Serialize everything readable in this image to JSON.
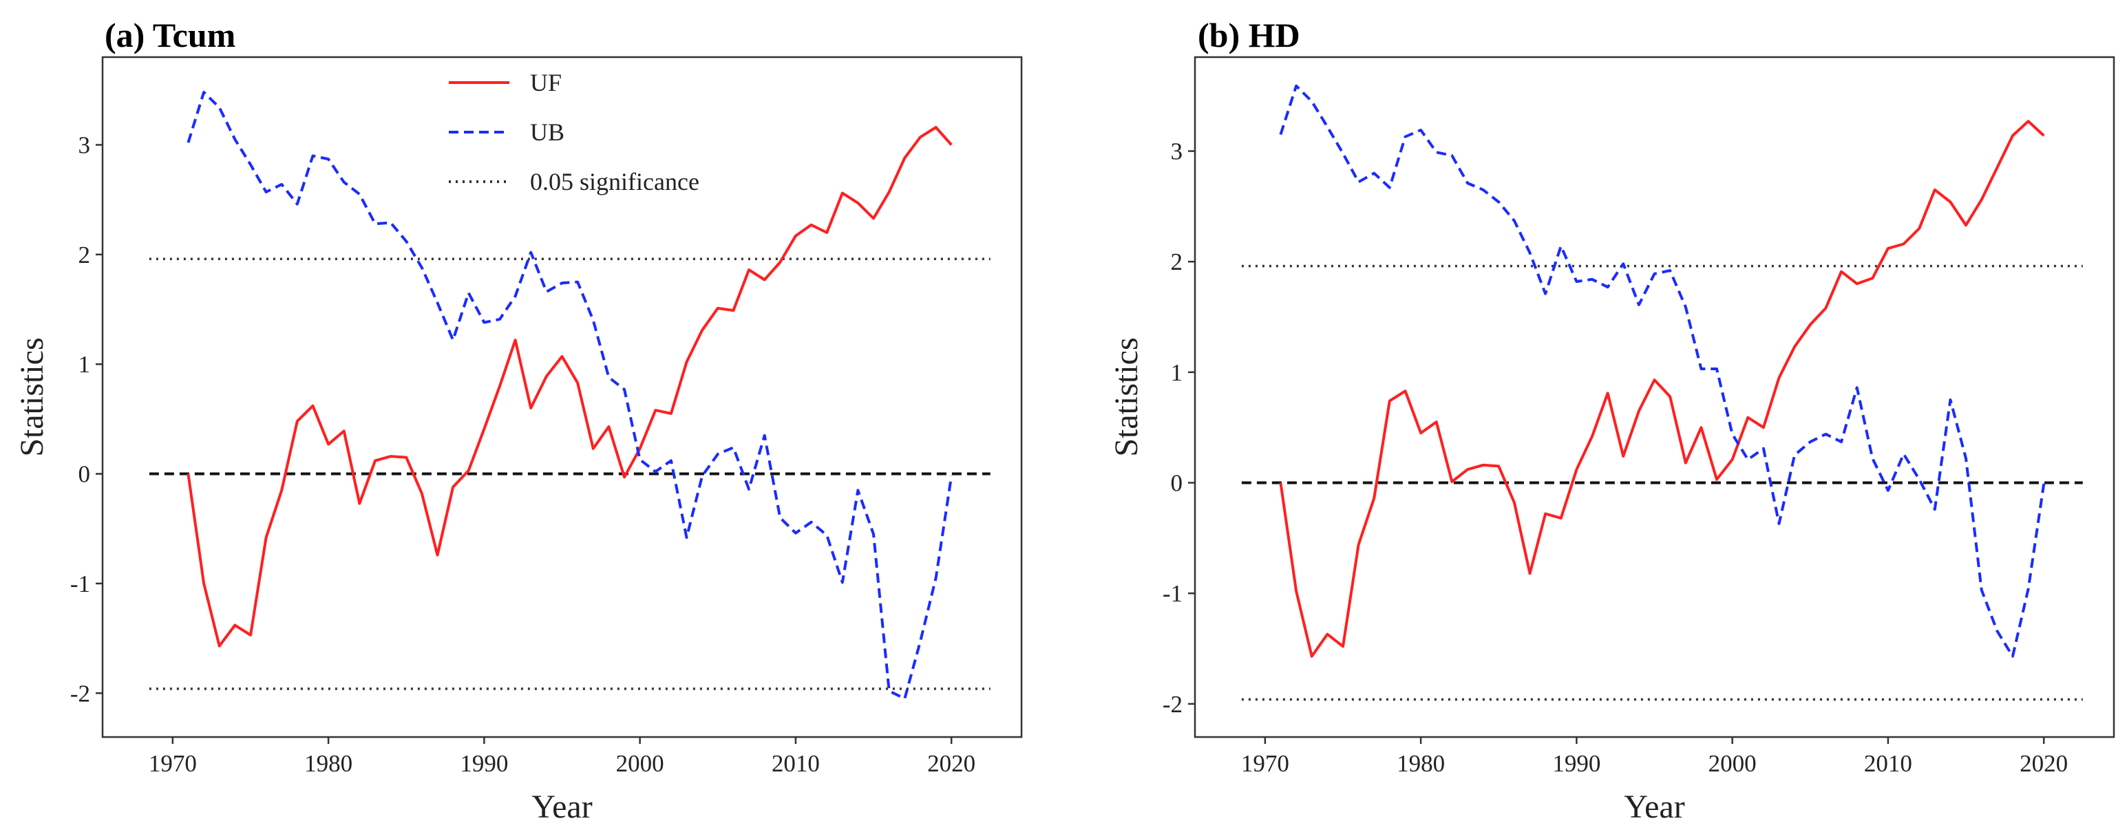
{
  "chart_data": [
    {
      "type": "line",
      "title": "(a) Tcum",
      "xlabel": "Year",
      "ylabel": "Statistics",
      "xlim": [
        1965.5,
        2024.5
      ],
      "ylim": [
        -2.4,
        3.8
      ],
      "xticks": [
        1970,
        1980,
        1990,
        2000,
        2010,
        2020
      ],
      "yticks": [
        -2,
        -1,
        0,
        1,
        2,
        3
      ],
      "x": [
        1971,
        1972,
        1973,
        1974,
        1975,
        1976,
        1977,
        1978,
        1979,
        1980,
        1981,
        1982,
        1983,
        1984,
        1985,
        1986,
        1987,
        1988,
        1989,
        1990,
        1991,
        1992,
        1993,
        1994,
        1995,
        1996,
        1997,
        1998,
        1999,
        2000,
        2001,
        2002,
        2003,
        2004,
        2005,
        2006,
        2007,
        2008,
        2009,
        2010,
        2011,
        2012,
        2013,
        2014,
        2015,
        2016,
        2017,
        2018,
        2019,
        2020
      ],
      "series": [
        {
          "name": "UF",
          "color": "#ff2020",
          "dash": "solid",
          "values": [
            0,
            -1.0,
            -1.57,
            -1.38,
            -1.47,
            -0.58,
            -0.15,
            0.48,
            0.62,
            0.27,
            0.39,
            -0.27,
            0.12,
            0.16,
            0.15,
            -0.18,
            -0.74,
            -0.12,
            0.03,
            0.41,
            0.8,
            1.22,
            0.6,
            0.89,
            1.07,
            0.83,
            0.23,
            0.43,
            -0.03,
            0.23,
            0.58,
            0.55,
            1.02,
            1.31,
            1.51,
            1.49,
            1.86,
            1.77,
            1.93,
            2.17,
            2.27,
            2.2,
            2.56,
            2.47,
            2.33,
            2.57,
            2.88,
            3.07,
            3.16,
            3.0
          ]
        },
        {
          "name": "UB",
          "color": "#1a2cff",
          "dash": "dashed",
          "values": [
            3.02,
            3.48,
            3.34,
            3.05,
            2.82,
            2.57,
            2.64,
            2.46,
            2.9,
            2.87,
            2.66,
            2.55,
            2.28,
            2.29,
            2.12,
            1.88,
            1.56,
            1.22,
            1.65,
            1.38,
            1.41,
            1.62,
            2.02,
            1.66,
            1.74,
            1.75,
            1.4,
            0.88,
            0.77,
            0.13,
            0.02,
            0.12,
            -0.58,
            -0.02,
            0.18,
            0.24,
            -0.14,
            0.35,
            -0.4,
            -0.54,
            -0.44,
            -0.56,
            -0.99,
            -0.15,
            -0.55,
            -1.98,
            -2.05,
            -1.53,
            -0.95,
            -0.02
          ]
        }
      ],
      "reference_lines": [
        {
          "value": 1.96,
          "style": "dotted",
          "color": "#333333"
        },
        {
          "value": -1.96,
          "style": "dotted",
          "color": "#333333"
        },
        {
          "value": 0,
          "style": "dashed",
          "color": "#111111"
        }
      ],
      "legend": {
        "position": "top-center",
        "entries": [
          {
            "label": "UF",
            "color": "#ff2020",
            "dash": "solid"
          },
          {
            "label": "UB",
            "color": "#1a2cff",
            "dash": "dashed"
          },
          {
            "label": "0.05 significance",
            "color": "#333333",
            "dash": "dotted"
          }
        ]
      }
    },
    {
      "type": "line",
      "title": "(b) HD",
      "xlabel": "Year",
      "ylabel": "Statistics",
      "xlim": [
        1965.5,
        2024.5
      ],
      "ylim": [
        -2.3,
        3.85
      ],
      "xticks": [
        1970,
        1980,
        1990,
        2000,
        2010,
        2020
      ],
      "yticks": [
        -2,
        -1,
        0,
        1,
        2,
        3
      ],
      "x": [
        1971,
        1972,
        1973,
        1974,
        1975,
        1976,
        1977,
        1978,
        1979,
        1980,
        1981,
        1982,
        1983,
        1984,
        1985,
        1986,
        1987,
        1988,
        1989,
        1990,
        1991,
        1992,
        1993,
        1994,
        1995,
        1996,
        1997,
        1998,
        1999,
        2000,
        2001,
        2002,
        2003,
        2004,
        2005,
        2006,
        2007,
        2008,
        2009,
        2010,
        2011,
        2012,
        2013,
        2014,
        2015,
        2016,
        2017,
        2018,
        2019,
        2020
      ],
      "series": [
        {
          "name": "UF",
          "color": "#ff2020",
          "dash": "solid",
          "values": [
            0,
            -0.98,
            -1.57,
            -1.37,
            -1.48,
            -0.56,
            -0.14,
            0.74,
            0.83,
            0.45,
            0.55,
            0.01,
            0.12,
            0.16,
            0.15,
            -0.18,
            -0.82,
            -0.28,
            -0.32,
            0.12,
            0.42,
            0.81,
            0.24,
            0.65,
            0.93,
            0.78,
            0.18,
            0.5,
            0.03,
            0.21,
            0.59,
            0.5,
            0.95,
            1.23,
            1.43,
            1.58,
            1.91,
            1.8,
            1.85,
            2.12,
            2.16,
            2.3,
            2.65,
            2.54,
            2.33,
            2.56,
            2.85,
            3.14,
            3.27,
            3.14
          ]
        },
        {
          "name": "UB",
          "color": "#1a2cff",
          "dash": "dashed",
          "values": [
            3.15,
            3.59,
            3.45,
            3.22,
            2.98,
            2.72,
            2.8,
            2.67,
            3.13,
            3.19,
            2.99,
            2.96,
            2.71,
            2.65,
            2.54,
            2.37,
            2.08,
            1.71,
            2.14,
            1.82,
            1.84,
            1.77,
            1.98,
            1.61,
            1.89,
            1.92,
            1.59,
            1.03,
            1.03,
            0.44,
            0.21,
            0.31,
            -0.37,
            0.25,
            0.37,
            0.44,
            0.37,
            0.86,
            0.22,
            -0.07,
            0.26,
            0.03,
            -0.24,
            0.75,
            0.22,
            -0.97,
            -1.34,
            -1.57,
            -0.96,
            -0.01
          ]
        }
      ],
      "reference_lines": [
        {
          "value": 1.96,
          "style": "dotted",
          "color": "#333333"
        },
        {
          "value": -1.96,
          "style": "dotted",
          "color": "#333333"
        },
        {
          "value": 0,
          "style": "dashed",
          "color": "#111111"
        }
      ]
    }
  ]
}
